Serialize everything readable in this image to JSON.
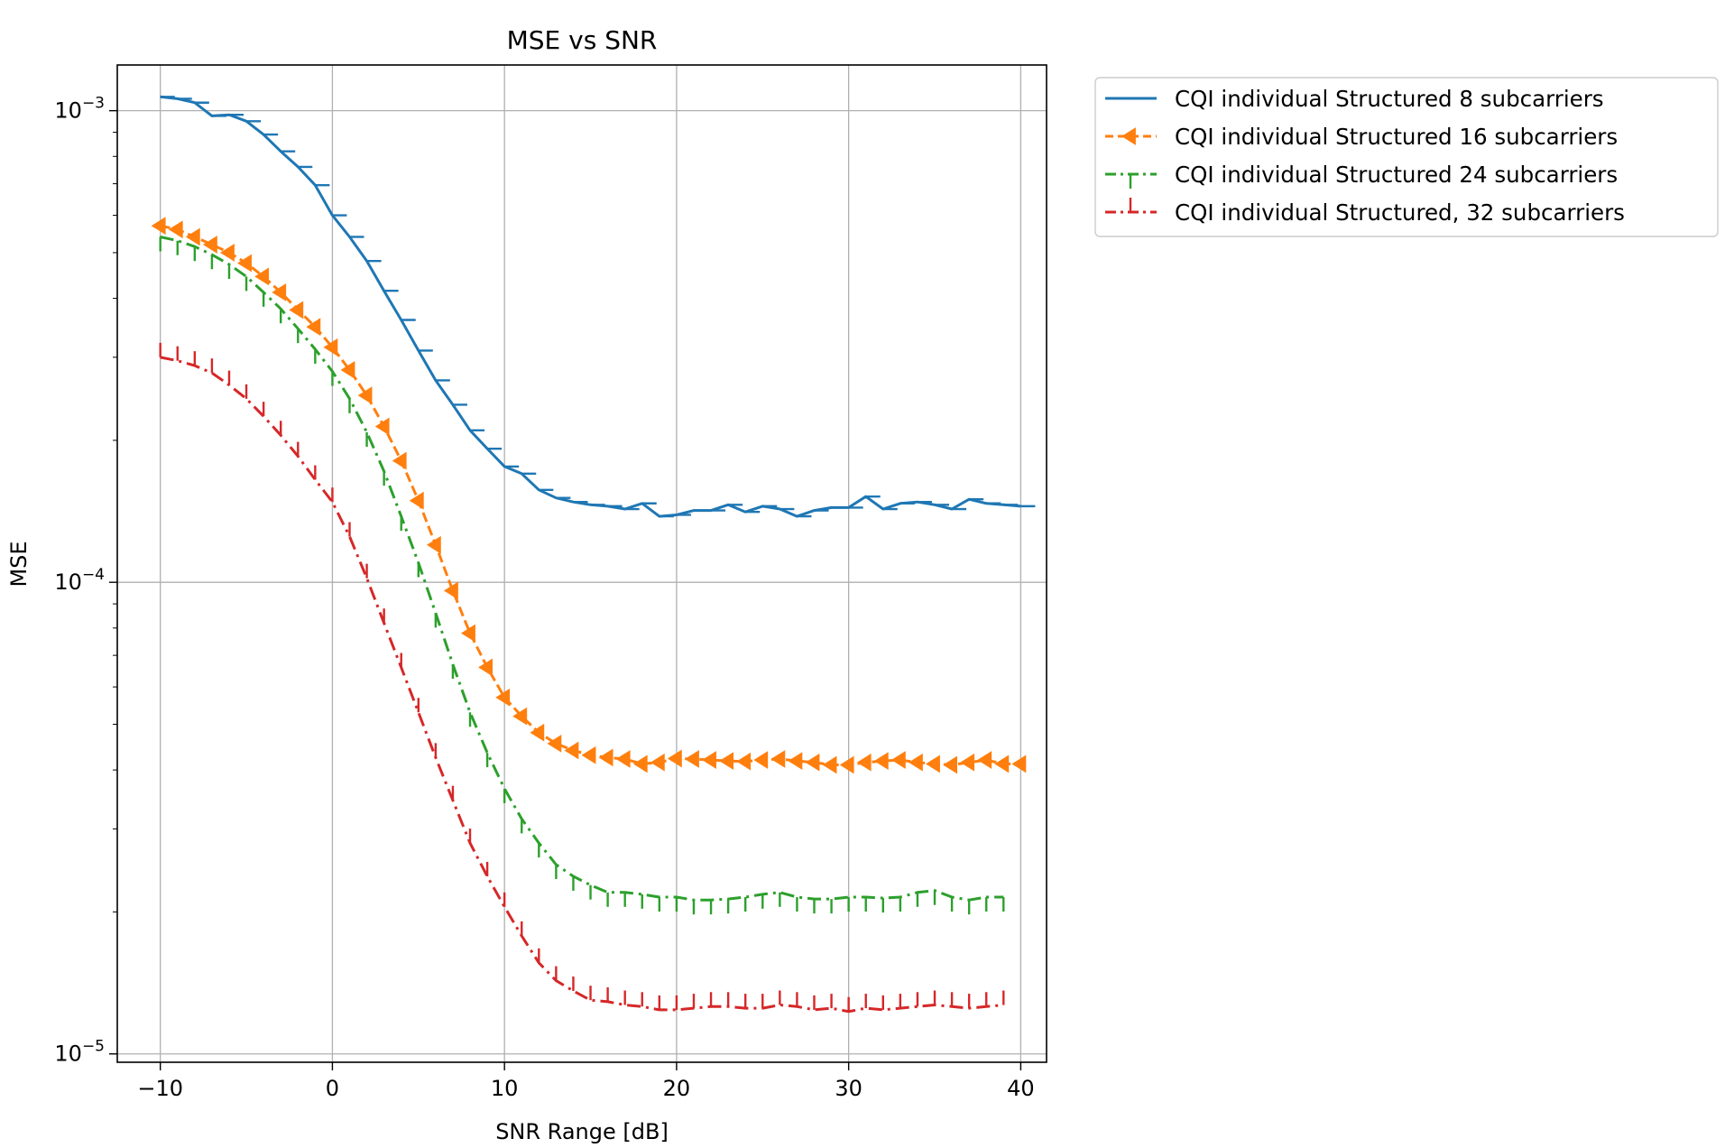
{
  "chart_data": {
    "type": "line",
    "title": "MSE vs SNR",
    "xlabel": "SNR Range [dB]",
    "ylabel": "MSE",
    "xlim": [
      -12.5,
      41.5
    ],
    "ylim": [
      9.6e-06,
      0.00125
    ],
    "yscale": "log",
    "grid": true,
    "legend_position": "outside-top-right",
    "x_ticks": [
      -10,
      0,
      10,
      20,
      30,
      40
    ],
    "x_tick_labels": [
      "−10",
      "0",
      "10",
      "20",
      "30",
      "40"
    ],
    "y_ticks": [
      1e-05,
      0.0001,
      0.001
    ],
    "y_tick_labels": [
      {
        "base": "10",
        "exp": "−5"
      },
      {
        "base": "10",
        "exp": "−4"
      },
      {
        "base": "10",
        "exp": "−3"
      }
    ],
    "series": [
      {
        "name": "CQI individual Structured 8 subcarriers",
        "color": "#1f77b4",
        "linestyle": "solid",
        "marker": "tickright",
        "x": [
          -10,
          -9,
          -8,
          -7,
          -6,
          -5,
          -4,
          -3,
          -2,
          -1,
          0,
          1,
          2,
          3,
          4,
          5,
          6,
          7,
          8,
          9,
          10,
          11,
          12,
          13,
          14,
          15,
          16,
          17,
          18,
          19,
          20,
          21,
          22,
          23,
          24,
          25,
          26,
          27,
          28,
          29,
          30,
          31,
          32,
          33,
          34,
          35,
          36,
          37,
          38,
          39,
          40
        ],
        "y": [
          0.00107,
          0.00106,
          0.00104,
          0.000975,
          0.00098,
          0.00095,
          0.00089,
          0.00082,
          0.00076,
          0.000695,
          0.0006,
          0.00054,
          0.00048,
          0.000415,
          0.00036,
          0.00031,
          0.000268,
          0.000238,
          0.00021,
          0.000192,
          0.000176,
          0.00017,
          0.000157,
          0.000151,
          0.000148,
          0.000146,
          0.000145,
          0.000143,
          0.000147,
          0.000138,
          0.000139,
          0.000142,
          0.000142,
          0.000146,
          0.000141,
          0.000145,
          0.000143,
          0.000138,
          0.000142,
          0.000144,
          0.000144,
          0.000152,
          0.000143,
          0.000147,
          0.000148,
          0.000146,
          0.000143,
          0.00015,
          0.000147,
          0.000146,
          0.000145
        ]
      },
      {
        "name": "CQI individual Structured 16 subcarriers",
        "color": "#ff7f0e",
        "linestyle": "dashed",
        "marker": "triangle-left",
        "x": [
          -10,
          -9,
          -8,
          -7,
          -6,
          -5,
          -4,
          -3,
          -2,
          -1,
          0,
          1,
          2,
          3,
          4,
          5,
          6,
          7,
          8,
          9,
          10,
          11,
          12,
          13,
          14,
          15,
          16,
          17,
          18,
          19,
          20,
          21,
          22,
          23,
          24,
          25,
          26,
          27,
          28,
          29,
          30,
          31,
          32,
          33,
          34,
          35,
          36,
          37,
          38,
          39,
          40
        ],
        "y": [
          0.00057,
          0.00056,
          0.00054,
          0.00052,
          0.0005,
          0.000475,
          0.000445,
          0.000412,
          0.000378,
          0.000348,
          0.000315,
          0.000282,
          0.000249,
          0.000214,
          0.000181,
          0.000149,
          0.00012,
          9.6e-05,
          7.8e-05,
          6.6e-05,
          5.7e-05,
          5.2e-05,
          4.8e-05,
          4.55e-05,
          4.4e-05,
          4.3e-05,
          4.25e-05,
          4.22e-05,
          4.12e-05,
          4.15e-05,
          4.23e-05,
          4.22e-05,
          4.2e-05,
          4.18e-05,
          4.17e-05,
          4.2e-05,
          4.22e-05,
          4.18e-05,
          4.15e-05,
          4.1e-05,
          4.1e-05,
          4.15e-05,
          4.18e-05,
          4.2e-05,
          4.15e-05,
          4.12e-05,
          4.1e-05,
          4.15e-05,
          4.2e-05,
          4.12e-05,
          4.12e-05
        ]
      },
      {
        "name": "CQI individual Structured 24 subcarriers",
        "color": "#2ca02c",
        "linestyle": "dashdot",
        "marker": "tickdown",
        "x": [
          -10,
          -9,
          -8,
          -7,
          -6,
          -5,
          -4,
          -3,
          -2,
          -1,
          0,
          1,
          2,
          3,
          4,
          5,
          6,
          7,
          8,
          9,
          10,
          11,
          12,
          13,
          14,
          15,
          16,
          17,
          18,
          19,
          20,
          21,
          22,
          23,
          24,
          25,
          26,
          27,
          28,
          29,
          30,
          31,
          32,
          33,
          34,
          35,
          36,
          37,
          38,
          39
        ],
        "y": [
          0.00054,
          0.00053,
          0.000515,
          0.000495,
          0.000472,
          0.000445,
          0.000412,
          0.00038,
          0.000345,
          0.000312,
          0.00028,
          0.000245,
          0.000208,
          0.000172,
          0.000138,
          0.00011,
          8.6e-05,
          6.7e-05,
          5.3e-05,
          4.35e-05,
          3.65e-05,
          3.15e-05,
          2.8e-05,
          2.52e-05,
          2.38e-05,
          2.28e-05,
          2.2e-05,
          2.2e-05,
          2.18e-05,
          2.15e-05,
          2.15e-05,
          2.12e-05,
          2.12e-05,
          2.13e-05,
          2.15e-05,
          2.18e-05,
          2.2e-05,
          2.15e-05,
          2.13e-05,
          2.13e-05,
          2.15e-05,
          2.15e-05,
          2.14e-05,
          2.15e-05,
          2.2e-05,
          2.22e-05,
          2.15e-05,
          2.12e-05,
          2.15e-05,
          2.15e-05
        ]
      },
      {
        "name": "CQI individual Structured, 32 subcarriers",
        "color": "#d62728",
        "linestyle": "dashdot",
        "marker": "tickup",
        "x": [
          -10,
          -9,
          -8,
          -7,
          -6,
          -5,
          -4,
          -3,
          -2,
          -1,
          0,
          1,
          2,
          3,
          4,
          5,
          6,
          7,
          8,
          9,
          10,
          11,
          12,
          13,
          14,
          15,
          16,
          17,
          18,
          19,
          20,
          21,
          22,
          23,
          24,
          25,
          26,
          27,
          28,
          29,
          30,
          31,
          32,
          33,
          34,
          35,
          36,
          37,
          38,
          39
        ],
        "y": [
          0.0003,
          0.000295,
          0.000288,
          0.000278,
          0.000262,
          0.000245,
          0.000225,
          0.000205,
          0.000185,
          0.000165,
          0.000148,
          0.000125,
          0.000102,
          8.2e-05,
          6.6e-05,
          5.3e-05,
          4.25e-05,
          3.45e-05,
          2.8e-05,
          2.38e-05,
          2.05e-05,
          1.78e-05,
          1.56e-05,
          1.43e-05,
          1.36e-05,
          1.3e-05,
          1.29e-05,
          1.27e-05,
          1.26e-05,
          1.24e-05,
          1.24e-05,
          1.25e-05,
          1.26e-05,
          1.26e-05,
          1.25e-05,
          1.25e-05,
          1.27e-05,
          1.26e-05,
          1.24e-05,
          1.25e-05,
          1.23e-05,
          1.25e-05,
          1.24e-05,
          1.25e-05,
          1.26e-05,
          1.27e-05,
          1.26e-05,
          1.25e-05,
          1.26e-05,
          1.27e-05
        ]
      }
    ]
  }
}
